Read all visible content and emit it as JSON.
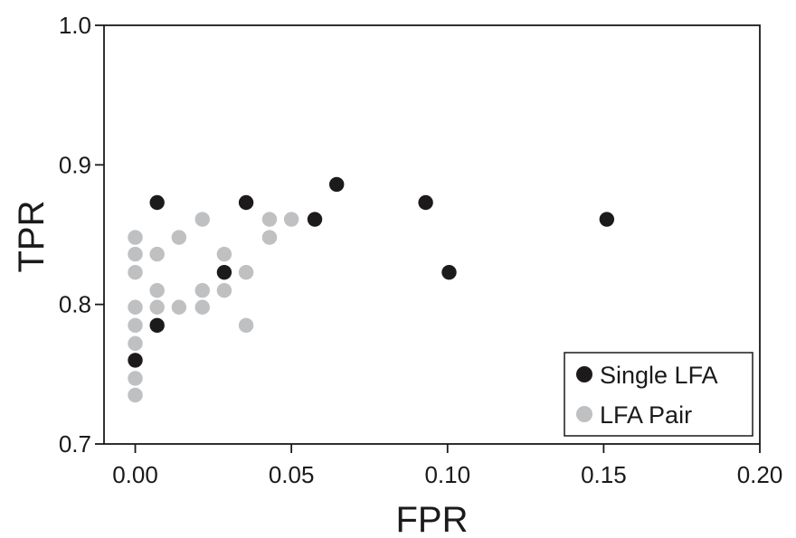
{
  "chart_data": {
    "type": "scatter",
    "xlabel": "FPR",
    "ylabel": "TPR",
    "xlim": [
      -0.01,
      0.2
    ],
    "ylim": [
      0.7,
      1.0
    ],
    "xticks": [
      "0.00",
      "0.05",
      "0.10",
      "0.15",
      "0.20"
    ],
    "yticks": [
      "0.7",
      "0.8",
      "0.9",
      "1.0"
    ],
    "legend_position": "bottom-right",
    "grid": false,
    "series": [
      {
        "name": "Single LFA",
        "color": "#1c1a1b",
        "points": [
          {
            "x": 0.0,
            "y": 0.76
          },
          {
            "x": 0.007,
            "y": 0.785
          },
          {
            "x": 0.007,
            "y": 0.873
          },
          {
            "x": 0.0285,
            "y": 0.823
          },
          {
            "x": 0.0355,
            "y": 0.873
          },
          {
            "x": 0.0575,
            "y": 0.861
          },
          {
            "x": 0.0645,
            "y": 0.886
          },
          {
            "x": 0.093,
            "y": 0.873
          },
          {
            "x": 0.1005,
            "y": 0.823
          },
          {
            "x": 0.151,
            "y": 0.861
          }
        ]
      },
      {
        "name": "LFA Pair",
        "color": "#bfc0c2",
        "points": [
          {
            "x": 0.0,
            "y": 0.735
          },
          {
            "x": 0.0,
            "y": 0.747
          },
          {
            "x": 0.0,
            "y": 0.772
          },
          {
            "x": 0.0,
            "y": 0.785
          },
          {
            "x": 0.0,
            "y": 0.798
          },
          {
            "x": 0.0,
            "y": 0.823
          },
          {
            "x": 0.0,
            "y": 0.836
          },
          {
            "x": 0.0,
            "y": 0.848
          },
          {
            "x": 0.007,
            "y": 0.798
          },
          {
            "x": 0.007,
            "y": 0.81
          },
          {
            "x": 0.007,
            "y": 0.836
          },
          {
            "x": 0.014,
            "y": 0.798
          },
          {
            "x": 0.014,
            "y": 0.848
          },
          {
            "x": 0.0215,
            "y": 0.798
          },
          {
            "x": 0.0215,
            "y": 0.81
          },
          {
            "x": 0.0215,
            "y": 0.861
          },
          {
            "x": 0.0285,
            "y": 0.81
          },
          {
            "x": 0.0285,
            "y": 0.836
          },
          {
            "x": 0.0355,
            "y": 0.785
          },
          {
            "x": 0.0355,
            "y": 0.823
          },
          {
            "x": 0.043,
            "y": 0.848
          },
          {
            "x": 0.043,
            "y": 0.861
          },
          {
            "x": 0.05,
            "y": 0.861
          }
        ]
      }
    ]
  }
}
